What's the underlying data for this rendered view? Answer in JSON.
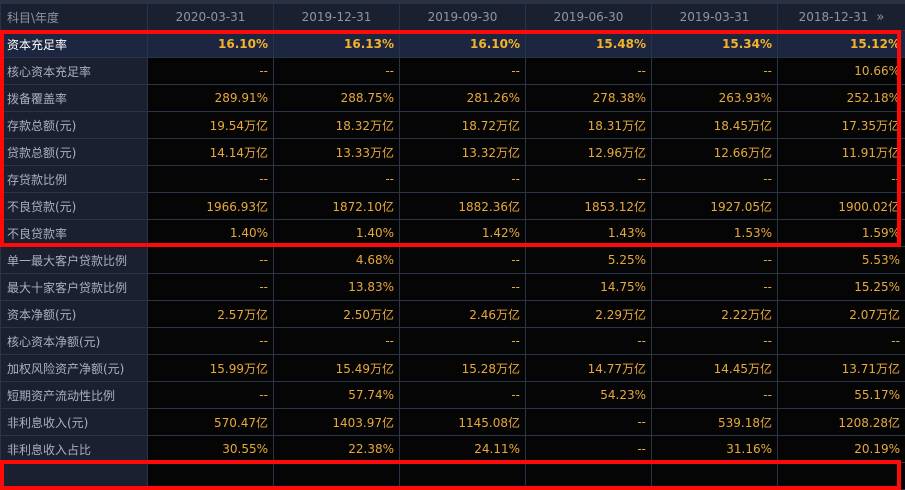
{
  "header": {
    "corner": "科目\\年度",
    "dates": [
      "2020-03-31",
      "2019-12-31",
      "2019-09-30",
      "2019-06-30",
      "2019-03-31",
      "2018-12-31"
    ],
    "more_icon": "»"
  },
  "rows": [
    {
      "label": "资本充足率",
      "values": [
        "16.10%",
        "16.13%",
        "16.10%",
        "15.48%",
        "15.34%",
        "15.12%"
      ]
    },
    {
      "label": "核心资本充足率",
      "values": [
        "--",
        "--",
        "--",
        "--",
        "--",
        "10.66%"
      ]
    },
    {
      "label": "拨备覆盖率",
      "values": [
        "289.91%",
        "288.75%",
        "281.26%",
        "278.38%",
        "263.93%",
        "252.18%"
      ]
    },
    {
      "label": "存款总额(元)",
      "values": [
        "19.54万亿",
        "18.32万亿",
        "18.72万亿",
        "18.31万亿",
        "18.45万亿",
        "17.35万亿"
      ]
    },
    {
      "label": "贷款总额(元)",
      "values": [
        "14.14万亿",
        "13.33万亿",
        "13.32万亿",
        "12.96万亿",
        "12.66万亿",
        "11.91万亿"
      ]
    },
    {
      "label": "存贷款比例",
      "values": [
        "--",
        "--",
        "--",
        "--",
        "--",
        "--"
      ]
    },
    {
      "label": "不良贷款(元)",
      "values": [
        "1966.93亿",
        "1872.10亿",
        "1882.36亿",
        "1853.12亿",
        "1927.05亿",
        "1900.02亿"
      ]
    },
    {
      "label": "不良贷款率",
      "values": [
        "1.40%",
        "1.40%",
        "1.42%",
        "1.43%",
        "1.53%",
        "1.59%"
      ]
    },
    {
      "label": "单一最大客户贷款比例",
      "values": [
        "--",
        "4.68%",
        "--",
        "5.25%",
        "--",
        "5.53%"
      ]
    },
    {
      "label": "最大十家客户贷款比例",
      "values": [
        "--",
        "13.83%",
        "--",
        "14.75%",
        "--",
        "15.25%"
      ]
    },
    {
      "label": "资本净额(元)",
      "values": [
        "2.57万亿",
        "2.50万亿",
        "2.46万亿",
        "2.29万亿",
        "2.22万亿",
        "2.07万亿"
      ]
    },
    {
      "label": "核心资本净额(元)",
      "values": [
        "--",
        "--",
        "--",
        "--",
        "--",
        "--"
      ]
    },
    {
      "label": "加权风险资产净额(元)",
      "values": [
        "15.99万亿",
        "15.49万亿",
        "15.28万亿",
        "14.77万亿",
        "14.45万亿",
        "13.71万亿"
      ]
    },
    {
      "label": "短期资产流动性比例",
      "values": [
        "--",
        "57.74%",
        "--",
        "54.23%",
        "--",
        "55.17%"
      ]
    },
    {
      "label": "非利息收入(元)",
      "values": [
        "570.47亿",
        "1403.97亿",
        "1145.08亿",
        "--",
        "539.18亿",
        "1208.28亿"
      ]
    },
    {
      "label": "非利息收入占比",
      "values": [
        "30.55%",
        "22.38%",
        "24.11%",
        "--",
        "31.16%",
        "20.19%"
      ]
    }
  ],
  "colors": {
    "highlight_box": "#ff0a0a",
    "value_text": "#e7a93c",
    "label_bg": "#1a2030"
  }
}
